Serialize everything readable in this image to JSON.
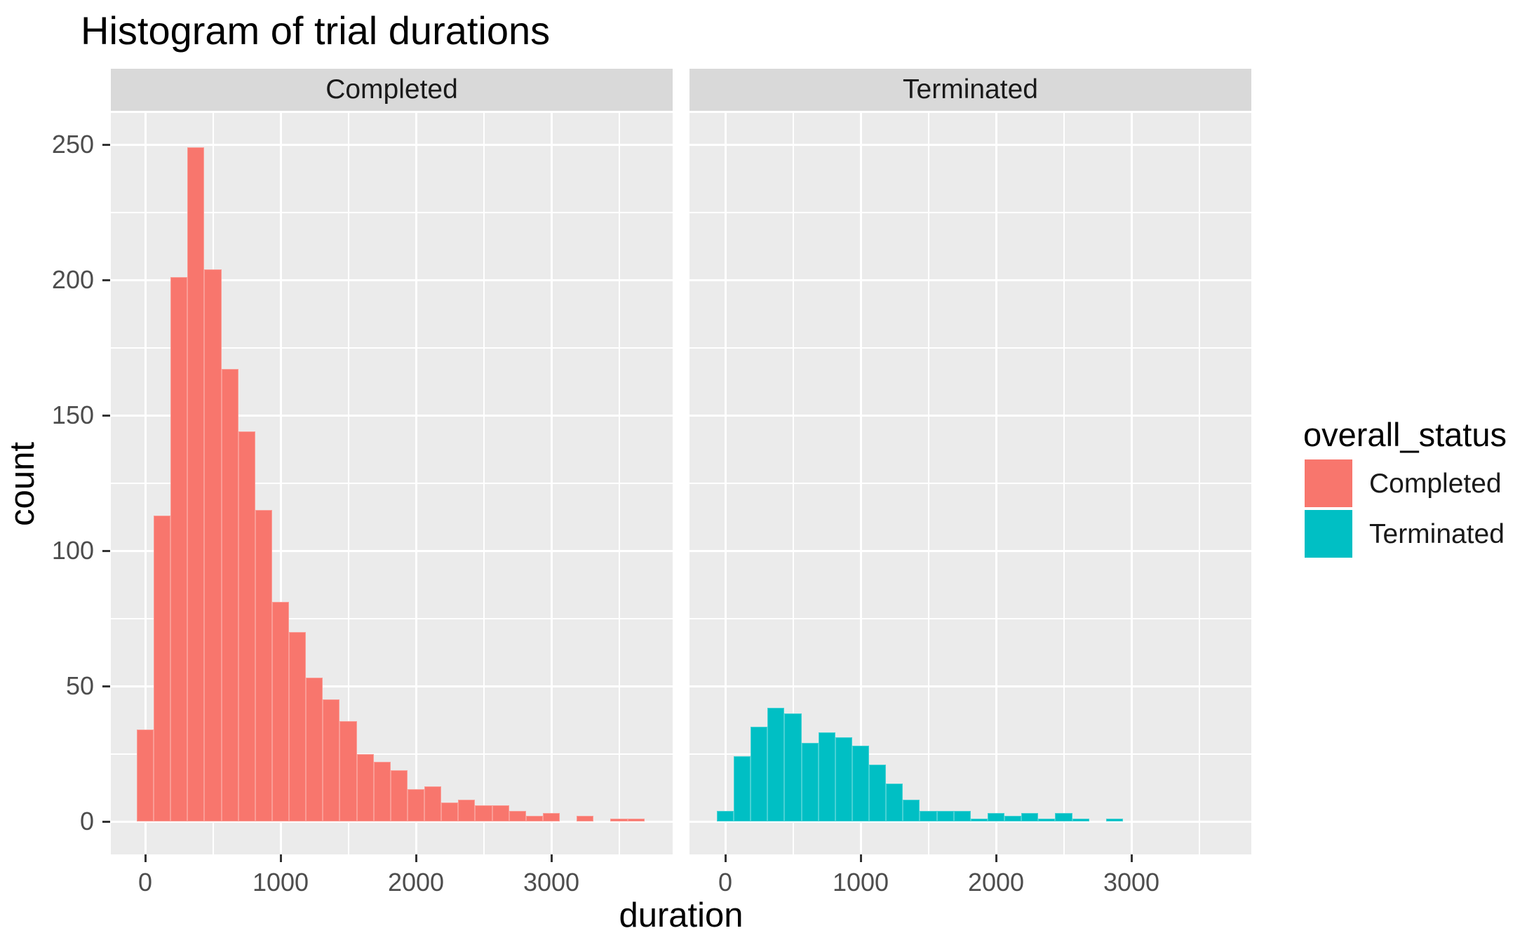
{
  "title": "Histogram of trial durations",
  "facets": [
    {
      "label": "Completed"
    },
    {
      "label": "Terminated"
    }
  ],
  "axes": {
    "x_label": "duration",
    "y_label": "count"
  },
  "legend": {
    "title": "overall_status",
    "items": [
      {
        "label": "Completed",
        "color": "#F8766D"
      },
      {
        "label": "Terminated",
        "color": "#00BFC4"
      }
    ]
  },
  "colors": {
    "panel_bg": "#EBEBEB",
    "strip_bg": "#D9D9D9",
    "grid": "#FFFFFF",
    "tick_text": "#4D4D4D",
    "tick_mark": "#333333",
    "text": "#000000",
    "bar_completed": "#F8766D",
    "bar_terminated": "#00BFC4"
  },
  "chart_data": {
    "type": "bar",
    "subtype": "faceted_histogram",
    "title": "Histogram of trial durations",
    "xlabel": "duration",
    "ylabel": "count",
    "facet_variable": "overall_status",
    "facets": [
      "Completed",
      "Terminated"
    ],
    "legend_position": "right",
    "grid": true,
    "bin_width": 125,
    "x_ticks": [
      0,
      1000,
      2000,
      3000
    ],
    "y_ticks": [
      0,
      50,
      100,
      150,
      200,
      250
    ],
    "x_minor": [
      500,
      1500,
      2500,
      3500
    ],
    "y_minor": [
      25,
      75,
      125,
      175,
      225
    ],
    "xlim": [
      -254,
      3896
    ],
    "ylim": [
      -12.5,
      261.5
    ],
    "series": [
      {
        "name": "Completed",
        "color": "#F8766D",
        "bin_centers": [
          0,
          125,
          250,
          375,
          500,
          625,
          750,
          875,
          1000,
          1125,
          1250,
          1375,
          1500,
          1625,
          1750,
          1875,
          2000,
          2125,
          2250,
          2375,
          2500,
          2625,
          2750,
          2875,
          3000,
          3125,
          3250,
          3375,
          3500,
          3625
        ],
        "counts": [
          34,
          113,
          201,
          249,
          204,
          167,
          144,
          115,
          81,
          70,
          53,
          45,
          37,
          25,
          22,
          19,
          12,
          13,
          7,
          8,
          6,
          6,
          4,
          2,
          3,
          0,
          2,
          0,
          1,
          1
        ]
      },
      {
        "name": "Terminated",
        "color": "#00BFC4",
        "bin_centers": [
          0,
          125,
          250,
          375,
          500,
          625,
          750,
          875,
          1000,
          1125,
          1250,
          1375,
          1500,
          1625,
          1750,
          1875,
          2000,
          2125,
          2250,
          2375,
          2500,
          2625,
          2750,
          2875
        ],
        "counts": [
          4,
          24,
          35,
          42,
          40,
          29,
          33,
          31,
          28,
          21,
          14,
          8,
          4,
          4,
          4,
          1,
          3,
          2,
          3,
          1,
          3,
          1,
          0,
          1
        ]
      }
    ]
  }
}
